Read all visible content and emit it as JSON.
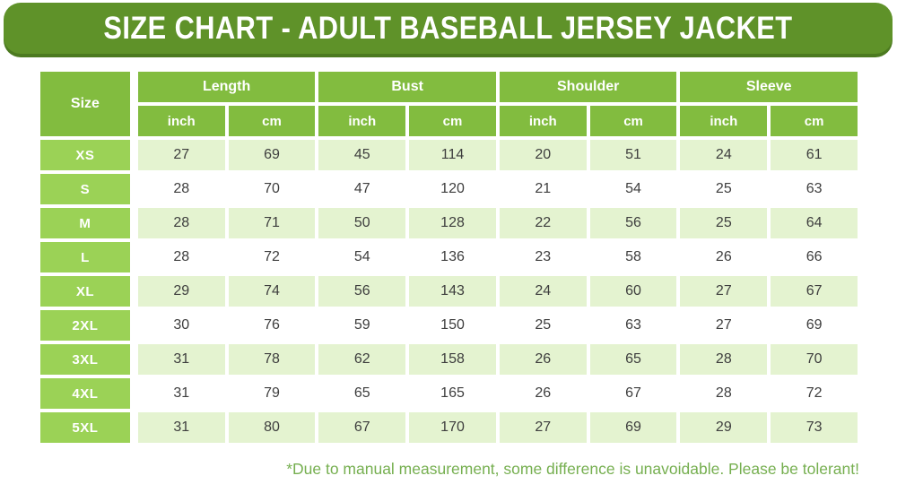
{
  "banner": {
    "title": "SIZE CHART - ADULT BASEBALL JERSEY JACKET",
    "bg_color": "#5F9229",
    "shadow_color": "#4C7A20"
  },
  "table": {
    "size_header": "Size",
    "groups": [
      {
        "label": "Length"
      },
      {
        "label": "Bust"
      },
      {
        "label": "Shoulder"
      },
      {
        "label": "Sleeve"
      }
    ],
    "unit_labels": [
      "inch",
      "cm"
    ],
    "rows": [
      {
        "size": "XS",
        "values": [
          27,
          69,
          45,
          114,
          20,
          51,
          24,
          61
        ]
      },
      {
        "size": "S",
        "values": [
          28,
          70,
          47,
          120,
          21,
          54,
          25,
          63
        ]
      },
      {
        "size": "M",
        "values": [
          28,
          71,
          50,
          128,
          22,
          56,
          25,
          64
        ]
      },
      {
        "size": "L",
        "values": [
          28,
          72,
          54,
          136,
          23,
          58,
          26,
          66
        ]
      },
      {
        "size": "XL",
        "values": [
          29,
          74,
          56,
          143,
          24,
          60,
          27,
          67
        ]
      },
      {
        "size": "2XL",
        "values": [
          30,
          76,
          59,
          150,
          25,
          63,
          27,
          69
        ]
      },
      {
        "size": "3XL",
        "values": [
          31,
          78,
          62,
          158,
          26,
          65,
          28,
          70
        ]
      },
      {
        "size": "4XL",
        "values": [
          31,
          79,
          65,
          165,
          26,
          67,
          28,
          72
        ]
      },
      {
        "size": "5XL",
        "values": [
          31,
          80,
          67,
          170,
          27,
          69,
          29,
          73
        ]
      }
    ]
  },
  "footnote": {
    "text": "*Due to manual measurement, some difference is unavoidable. Please be tolerant!",
    "color": "#76AF50"
  },
  "colors": {
    "banner_green": "#5F9229",
    "banner_shadow_green": "#4C7A20",
    "header_green": "#82BC3F",
    "size_label_green": "#9BD256",
    "row_pale_green": "#E4F3D0",
    "row_white": "#FFFFFF",
    "value_text": "#3E3E3E",
    "header_text": "#FFFFFF"
  },
  "chart_data": {
    "type": "table",
    "title": "SIZE CHART - ADULT BASEBALL JERSEY JACKET",
    "column_groups": [
      "Length",
      "Bust",
      "Shoulder",
      "Sleeve"
    ],
    "columns": [
      "Size",
      "Length (inch)",
      "Length (cm)",
      "Bust (inch)",
      "Bust (cm)",
      "Shoulder (inch)",
      "Shoulder (cm)",
      "Sleeve (inch)",
      "Sleeve (cm)"
    ],
    "rows": [
      [
        "XS",
        27,
        69,
        45,
        114,
        20,
        51,
        24,
        61
      ],
      [
        "S",
        28,
        70,
        47,
        120,
        21,
        54,
        25,
        63
      ],
      [
        "M",
        28,
        71,
        50,
        128,
        22,
        56,
        25,
        64
      ],
      [
        "L",
        28,
        72,
        54,
        136,
        23,
        58,
        26,
        66
      ],
      [
        "XL",
        29,
        74,
        56,
        143,
        24,
        60,
        27,
        67
      ],
      [
        "2XL",
        30,
        76,
        59,
        150,
        25,
        63,
        27,
        69
      ],
      [
        "3XL",
        31,
        78,
        62,
        158,
        26,
        65,
        28,
        70
      ],
      [
        "4XL",
        31,
        79,
        65,
        165,
        26,
        67,
        28,
        72
      ],
      [
        "5XL",
        31,
        80,
        67,
        170,
        27,
        69,
        29,
        73
      ]
    ],
    "row_striping": "odd rows pale green (#E4F3D0), even rows white",
    "footnote": "*Due to manual measurement, some difference is unavoidable. Please be tolerant!"
  }
}
